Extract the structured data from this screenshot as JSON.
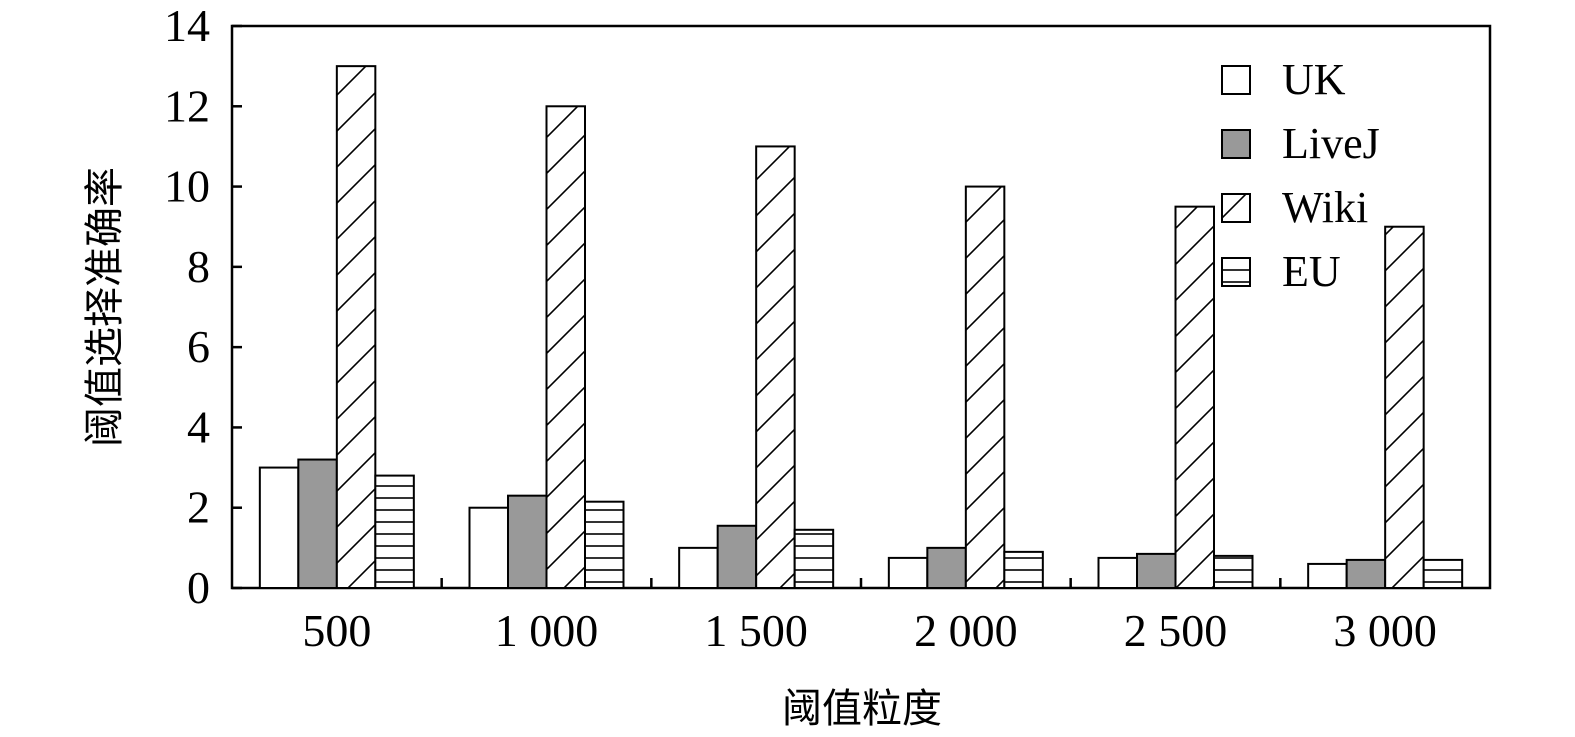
{
  "chart_data": {
    "type": "bar",
    "xlabel": "阈值粒度",
    "ylabel": "阈值选择准确率",
    "categories": [
      "500",
      "1 000",
      "1 500",
      "2 000",
      "2 500",
      "3 000"
    ],
    "ylim": [
      0,
      14
    ],
    "yticks": [
      "0",
      "2",
      "4",
      "6",
      "8",
      "10",
      "12",
      "14"
    ],
    "grid": false,
    "legend_position": "top-right",
    "series": [
      {
        "name": "UK",
        "fill": "white",
        "values": [
          3.0,
          2.0,
          1.0,
          0.75,
          0.75,
          0.6
        ]
      },
      {
        "name": "LiveJ",
        "fill": "gray",
        "values": [
          3.2,
          2.3,
          1.55,
          1.0,
          0.85,
          0.7
        ]
      },
      {
        "name": "Wiki",
        "fill": "diagonal-hatch",
        "values": [
          13.0,
          12.0,
          11.0,
          10.0,
          9.5,
          9.0
        ]
      },
      {
        "name": "EU",
        "fill": "horizontal-hatch",
        "values": [
          2.8,
          2.15,
          1.45,
          0.9,
          0.8,
          0.7
        ]
      }
    ],
    "colors": {
      "gray": "#999999",
      "stroke": "#000000"
    }
  }
}
